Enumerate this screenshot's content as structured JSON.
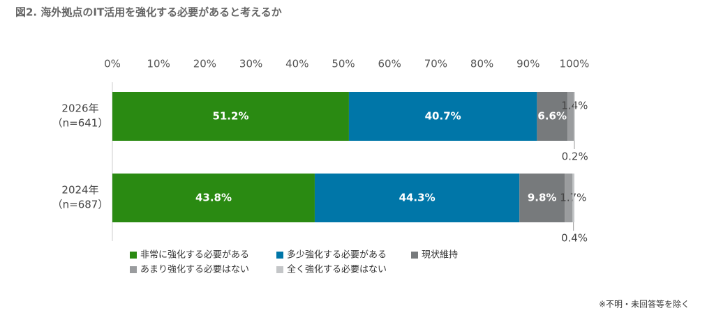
{
  "chart_data": {
    "type": "stacked-bar-horizontal",
    "title": "図2. 海外拠点のIT活用を強化する必要があると考えるか",
    "categories": [
      "2026年",
      "2024年"
    ],
    "category_notes": [
      "（n=641）",
      "（n=687）"
    ],
    "series": [
      {
        "name": "非常に強化する必要がある",
        "color": "#2a8a12",
        "values": [
          51.2,
          43.8
        ],
        "value_labels": [
          "51.2%",
          "43.8%"
        ]
      },
      {
        "name": "多少強化する必要がある",
        "color": "#0076a8",
        "values": [
          40.7,
          44.3
        ],
        "value_labels": [
          "40.7%",
          "44.3%"
        ]
      },
      {
        "name": "現状維持",
        "color": "#777a7c",
        "values": [
          6.6,
          9.8
        ],
        "value_labels": [
          "6.6%",
          "9.8%"
        ]
      },
      {
        "name": "あまり強化する必要はない",
        "color": "#9a9c9e",
        "values": [
          1.4,
          1.7
        ],
        "value_labels": [
          "1.4%",
          "1.7%"
        ]
      },
      {
        "name": "全く強化する必要はない",
        "color": "#c4c6c8",
        "values": [
          0.2,
          0.4
        ],
        "value_labels": [
          "0.2%",
          "0.4%"
        ]
      }
    ],
    "xlim": [
      0,
      100
    ],
    "xticks": [
      {
        "value": 0,
        "label": "0%"
      },
      {
        "value": 10,
        "label": "10%"
      },
      {
        "value": 20,
        "label": "20%"
      },
      {
        "value": 30,
        "label": "30%"
      },
      {
        "value": 40,
        "label": "40%"
      },
      {
        "value": 50,
        "label": "50%"
      },
      {
        "value": 60,
        "label": "60%"
      },
      {
        "value": 70,
        "label": "70%"
      },
      {
        "value": 80,
        "label": "80%"
      },
      {
        "value": 90,
        "label": "90%"
      },
      {
        "value": 100,
        "label": "100%"
      }
    ],
    "footnote": "※不明・未回答等を除く"
  }
}
